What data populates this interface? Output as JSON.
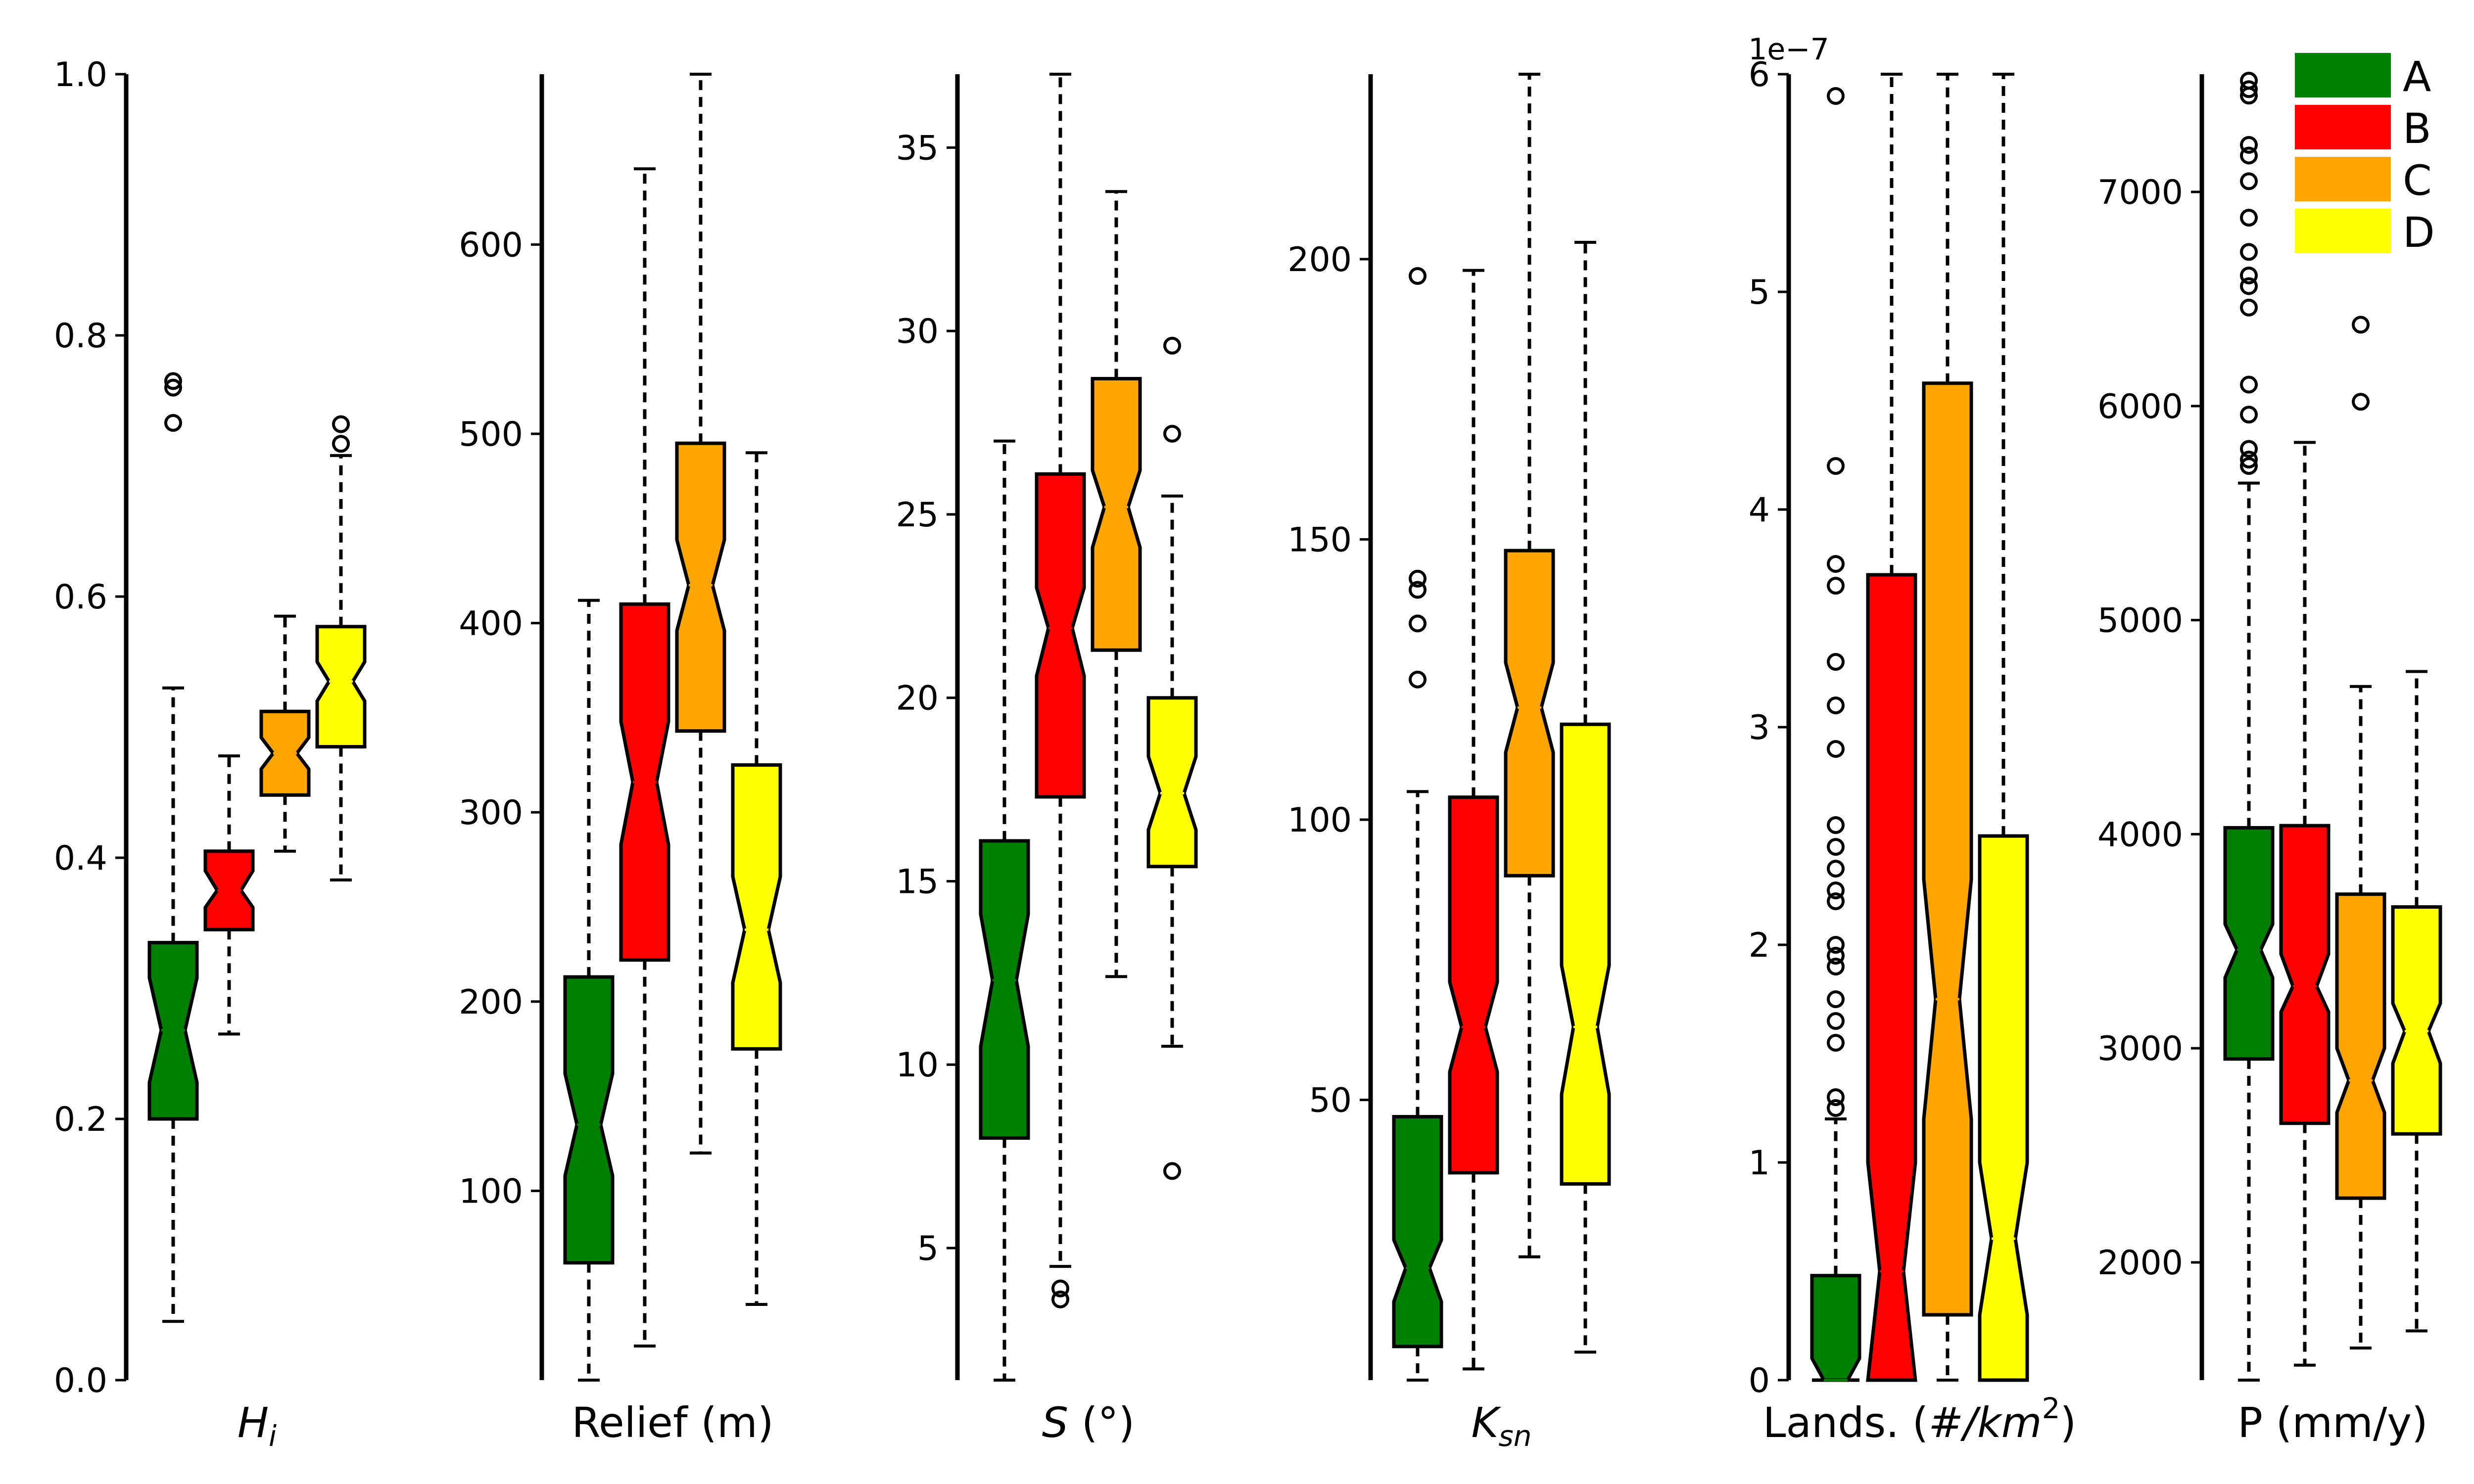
{
  "legend": {
    "position": "top-right",
    "items": [
      {
        "label": "A",
        "color": "#008000"
      },
      {
        "label": "B",
        "color": "#ff0000"
      },
      {
        "label": "C",
        "color": "#ffa500"
      },
      {
        "label": "D",
        "color": "#ffff00"
      }
    ]
  },
  "chart_data": [
    {
      "type": "boxplot",
      "notched": true,
      "xlabel": {
        "base": "H",
        "sub": "i",
        "italic": true
      },
      "ylim": [
        0.0,
        1.0
      ],
      "yticks": [
        0.0,
        0.2,
        0.4,
        0.6,
        0.8,
        1.0
      ],
      "ytick_labels": [
        "0.0",
        "0.2",
        "0.4",
        "0.6",
        "0.8",
        "1.0"
      ],
      "boxes": [
        {
          "group": "A",
          "whislo": 0.045,
          "q1": 0.2,
          "med": 0.268,
          "q3": 0.335,
          "whishi": 0.53,
          "notch": [
            0.228,
            0.308
          ],
          "fliers": [
            0.733,
            0.76,
            0.765
          ]
        },
        {
          "group": "B",
          "whislo": 0.265,
          "q1": 0.345,
          "med": 0.375,
          "q3": 0.405,
          "whishi": 0.478,
          "notch": [
            0.362,
            0.39
          ],
          "fliers": []
        },
        {
          "group": "C",
          "whislo": 0.405,
          "q1": 0.448,
          "med": 0.48,
          "q3": 0.512,
          "whishi": 0.585,
          "notch": [
            0.468,
            0.492
          ],
          "fliers": []
        },
        {
          "group": "D",
          "whislo": 0.383,
          "q1": 0.485,
          "med": 0.535,
          "q3": 0.577,
          "whishi": 0.708,
          "notch": [
            0.52,
            0.55
          ],
          "fliers": [
            0.717,
            0.732
          ]
        }
      ]
    },
    {
      "type": "boxplot",
      "notched": true,
      "xlabel": {
        "base": "Relief (m)"
      },
      "ylim": [
        0,
        690
      ],
      "yticks": [
        100,
        200,
        300,
        400,
        500,
        600
      ],
      "ytick_labels": [
        "100",
        "200",
        "300",
        "400",
        "500",
        "600"
      ],
      "boxes": [
        {
          "group": "A",
          "whislo": 0,
          "q1": 62,
          "med": 135,
          "q3": 213,
          "whishi": 412,
          "notch": [
            108,
            162
          ],
          "fliers": []
        },
        {
          "group": "B",
          "whislo": 18,
          "q1": 222,
          "med": 316,
          "q3": 410,
          "whishi": 640,
          "notch": [
            283,
            348
          ],
          "fliers": []
        },
        {
          "group": "C",
          "whislo": 120,
          "q1": 343,
          "med": 420,
          "q3": 495,
          "whishi": 690,
          "notch": [
            396,
            444
          ],
          "fliers": []
        },
        {
          "group": "D",
          "whislo": 40,
          "q1": 175,
          "med": 238,
          "q3": 325,
          "whishi": 490,
          "notch": [
            210,
            266
          ],
          "fliers": []
        }
      ]
    },
    {
      "type": "boxplot",
      "notched": true,
      "xlabel": {
        "base": "S",
        "suffix": " (°)",
        "italic": true
      },
      "ylim": [
        1.4,
        37.0
      ],
      "yticks": [
        5,
        10,
        15,
        20,
        25,
        30,
        35
      ],
      "ytick_labels": [
        "5",
        "10",
        "15",
        "20",
        "25",
        "30",
        "35"
      ],
      "boxes": [
        {
          "group": "A",
          "whislo": 1.4,
          "q1": 8.0,
          "med": 12.3,
          "q3": 16.1,
          "whishi": 27.0,
          "notch": [
            10.5,
            14.1
          ],
          "fliers": []
        },
        {
          "group": "B",
          "whislo": 4.5,
          "q1": 17.3,
          "med": 21.9,
          "q3": 26.1,
          "whishi": 37.0,
          "notch": [
            20.6,
            23.0
          ],
          "fliers": [
            3.6,
            3.9
          ]
        },
        {
          "group": "C",
          "whislo": 12.4,
          "q1": 21.3,
          "med": 25.2,
          "q3": 28.7,
          "whishi": 33.8,
          "notch": [
            24.1,
            26.2
          ],
          "fliers": []
        },
        {
          "group": "D",
          "whislo": 10.5,
          "q1": 15.4,
          "med": 17.4,
          "q3": 20.0,
          "whishi": 25.5,
          "notch": [
            16.4,
            18.4
          ],
          "fliers": [
            7.1,
            27.2,
            29.6
          ]
        }
      ]
    },
    {
      "type": "boxplot",
      "notched": true,
      "xlabel": {
        "base": "K",
        "sub": "sn",
        "italic": true
      },
      "ylim": [
        0,
        233
      ],
      "yticks": [
        50,
        100,
        150,
        200
      ],
      "ytick_labels": [
        "50",
        "100",
        "150",
        "200"
      ],
      "boxes": [
        {
          "group": "A",
          "whislo": 0,
          "q1": 6,
          "med": 20,
          "q3": 47,
          "whishi": 105,
          "notch": [
            14,
            25
          ],
          "fliers": [
            125,
            135,
            141,
            143,
            197
          ]
        },
        {
          "group": "B",
          "whislo": 2,
          "q1": 37,
          "med": 63,
          "q3": 104,
          "whishi": 198,
          "notch": [
            55,
            71
          ],
          "fliers": []
        },
        {
          "group": "C",
          "whislo": 22,
          "q1": 90,
          "med": 120,
          "q3": 148,
          "whishi": 233,
          "notch": [
            112,
            128
          ],
          "fliers": []
        },
        {
          "group": "D",
          "whislo": 5,
          "q1": 35,
          "med": 63,
          "q3": 117,
          "whishi": 203,
          "notch": [
            51,
            74
          ],
          "fliers": []
        }
      ]
    },
    {
      "type": "boxplot",
      "notched": true,
      "xlabel": {
        "base": "Lands. (",
        "italic_part": "#/km",
        "sup": "2",
        "suffix": ")"
      },
      "offset_text": "1e−7",
      "ylim": [
        0,
        6e-07
      ],
      "yticks": [
        0,
        1e-07,
        2e-07,
        3e-07,
        4e-07,
        5e-07,
        6e-07
      ],
      "ytick_labels": [
        "0",
        "1",
        "2",
        "3",
        "4",
        "5",
        "6"
      ],
      "boxes": [
        {
          "group": "A",
          "whislo": 0,
          "q1": 0,
          "med": 0,
          "q3": 4.8e-08,
          "whishi": 1.2e-07,
          "notch": [
            0,
            1e-08
          ],
          "fliers": [
            1.25e-07,
            1.3e-07,
            1.55e-07,
            1.65e-07,
            1.75e-07,
            1.9e-07,
            1.95e-07,
            2e-07,
            2.2e-07,
            2.25e-07,
            2.35e-07,
            2.45e-07,
            2.55e-07,
            2.9e-07,
            3.1e-07,
            3.3e-07,
            3.65e-07,
            3.75e-07,
            4.2e-07,
            5.9e-07
          ]
        },
        {
          "group": "B",
          "whislo": 0,
          "q1": 0,
          "med": 5e-08,
          "q3": 3.7e-07,
          "whishi": 6e-07,
          "notch": [
            0,
            1e-07
          ],
          "fliers": []
        },
        {
          "group": "C",
          "whislo": 0,
          "q1": 3e-08,
          "med": 1.75e-07,
          "q3": 4.58e-07,
          "whishi": 6e-07,
          "notch": [
            1.2e-07,
            2.3e-07
          ],
          "fliers": []
        },
        {
          "group": "D",
          "whislo": 0,
          "q1": 0,
          "med": 6.5e-08,
          "q3": 2.5e-07,
          "whishi": 6e-07,
          "notch": [
            3e-08,
            1e-07
          ],
          "fliers": []
        }
      ]
    },
    {
      "type": "boxplot",
      "notched": true,
      "xlabel": {
        "base": "P (mm/y)"
      },
      "ylim": [
        1450,
        7550
      ],
      "yticks": [
        2000,
        3000,
        4000,
        5000,
        6000,
        7000
      ],
      "ytick_labels": [
        "2000",
        "3000",
        "4000",
        "5000",
        "6000",
        "7000"
      ],
      "boxes": [
        {
          "group": "A",
          "whislo": 1450,
          "q1": 2950,
          "med": 3460,
          "q3": 4030,
          "whishi": 5640,
          "notch": [
            3330,
            3580
          ],
          "fliers": [
            5720,
            5750,
            5800,
            5960,
            6100,
            6460,
            6560,
            6610,
            6720,
            6880,
            7050,
            7170,
            7220,
            7450,
            7480,
            7520
          ]
        },
        {
          "group": "B",
          "whislo": 1520,
          "q1": 2650,
          "med": 3290,
          "q3": 4040,
          "whishi": 5830,
          "notch": [
            3170,
            3440
          ],
          "fliers": []
        },
        {
          "group": "C",
          "whislo": 1600,
          "q1": 2300,
          "med": 2850,
          "q3": 3720,
          "whishi": 4690,
          "notch": [
            2700,
            3000
          ],
          "fliers": [
            6020,
            6380
          ]
        },
        {
          "group": "D",
          "whislo": 1680,
          "q1": 2600,
          "med": 3080,
          "q3": 3660,
          "whishi": 4760,
          "notch": [
            2930,
            3210
          ],
          "fliers": []
        }
      ]
    }
  ]
}
